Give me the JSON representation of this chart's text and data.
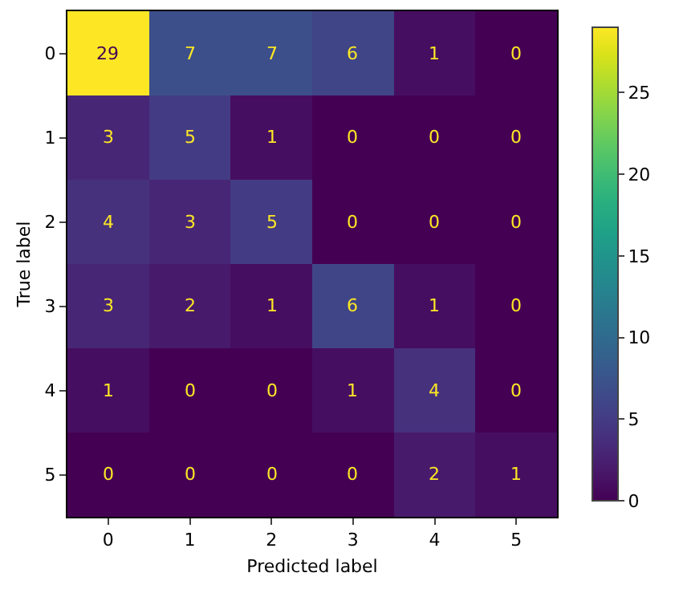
{
  "chart_data": {
    "type": "heatmap",
    "xlabel": "Predicted label",
    "ylabel": "True label",
    "categories": [
      "0",
      "1",
      "2",
      "3",
      "4",
      "5"
    ],
    "y_categories": [
      "0",
      "1",
      "2",
      "3",
      "4",
      "5"
    ],
    "cells": [
      [
        29,
        7,
        7,
        6,
        1,
        0
      ],
      [
        3,
        5,
        1,
        0,
        0,
        0
      ],
      [
        4,
        3,
        5,
        0,
        0,
        0
      ],
      [
        3,
        2,
        1,
        6,
        1,
        0
      ],
      [
        1,
        0,
        0,
        1,
        4,
        0
      ],
      [
        0,
        0,
        0,
        0,
        2,
        1
      ]
    ],
    "clim": [
      0,
      29
    ],
    "cticks": [
      0,
      5,
      10,
      15,
      20,
      25
    ],
    "data_labels": true
  }
}
